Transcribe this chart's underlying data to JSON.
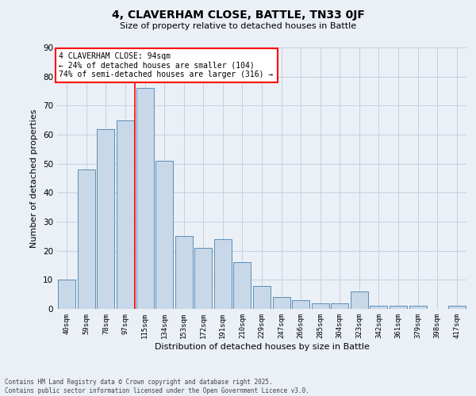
{
  "title1": "4, CLAVERHAM CLOSE, BATTLE, TN33 0JF",
  "title2": "Size of property relative to detached houses in Battle",
  "xlabel": "Distribution of detached houses by size in Battle",
  "ylabel": "Number of detached properties",
  "categories": [
    "40sqm",
    "59sqm",
    "78sqm",
    "97sqm",
    "115sqm",
    "134sqm",
    "153sqm",
    "172sqm",
    "191sqm",
    "210sqm",
    "229sqm",
    "247sqm",
    "266sqm",
    "285sqm",
    "304sqm",
    "323sqm",
    "342sqm",
    "361sqm",
    "379sqm",
    "398sqm",
    "417sqm"
  ],
  "values": [
    10,
    48,
    62,
    65,
    76,
    51,
    25,
    21,
    24,
    16,
    8,
    4,
    3,
    2,
    2,
    6,
    1,
    1,
    1,
    0,
    1
  ],
  "bar_color": "#c8d8e8",
  "bar_edge_color": "#5b8db8",
  "vline_x": 3.5,
  "vline_color": "red",
  "annotation_title": "4 CLAVERHAM CLOSE: 94sqm",
  "annotation_line1": "← 24% of detached houses are smaller (104)",
  "annotation_line2": "74% of semi-detached houses are larger (316) →",
  "annotation_box_color": "white",
  "annotation_box_edge": "red",
  "footnote": "Contains HM Land Registry data © Crown copyright and database right 2025.\nContains public sector information licensed under the Open Government Licence v3.0.",
  "ylim": [
    0,
    90
  ],
  "yticks": [
    0,
    10,
    20,
    30,
    40,
    50,
    60,
    70,
    80,
    90
  ],
  "background_color": "#eaf0f6",
  "grid_color": "#c5cfe0"
}
